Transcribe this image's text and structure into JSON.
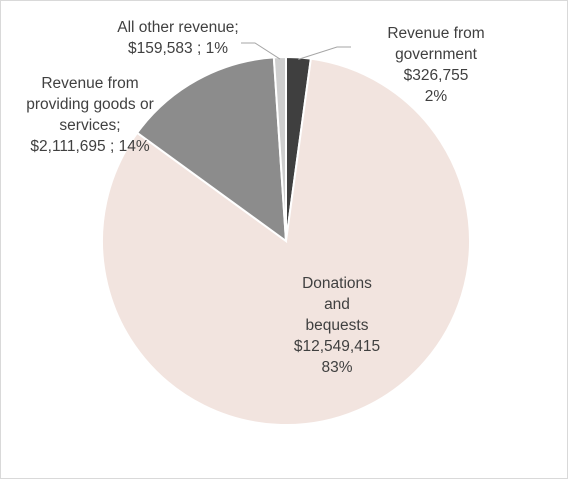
{
  "chart_data": {
    "type": "pie",
    "title": "",
    "series": [
      {
        "name": "",
        "categories": [
          "Revenue from government",
          "Donations and bequests",
          "Revenue from providing goods or services",
          "All other revenue"
        ],
        "values": [
          326755,
          12549415,
          2111695,
          159583
        ],
        "percents": [
          2,
          83,
          14,
          1
        ]
      }
    ],
    "slices": [
      {
        "key": "gov",
        "label": "Revenue from government",
        "value": 326755,
        "percent": 2,
        "color": "#3f3f3f",
        "label_text": "Revenue from\ngovernment\n$326,755\n2%"
      },
      {
        "key": "don",
        "label": "Donations and bequests",
        "value": 12549415,
        "percent": 83,
        "color": "#f2e4df",
        "label_text": "Donations\nand\nbequests\n$12,549,415\n83%"
      },
      {
        "key": "goods",
        "label": "Revenue from providing goods or services",
        "value": 2111695,
        "percent": 14,
        "color": "#8c8c8c",
        "label_text": "Revenue from\nproviding goods or\nservices;\n$2,111,695 ; 14%"
      },
      {
        "key": "other",
        "label": "All other revenue",
        "value": 159583,
        "percent": 1,
        "color": "#cfcfcf",
        "label_text": "All other revenue;\n$159,583 ; 1%"
      }
    ],
    "legend": "none",
    "grid": false
  }
}
